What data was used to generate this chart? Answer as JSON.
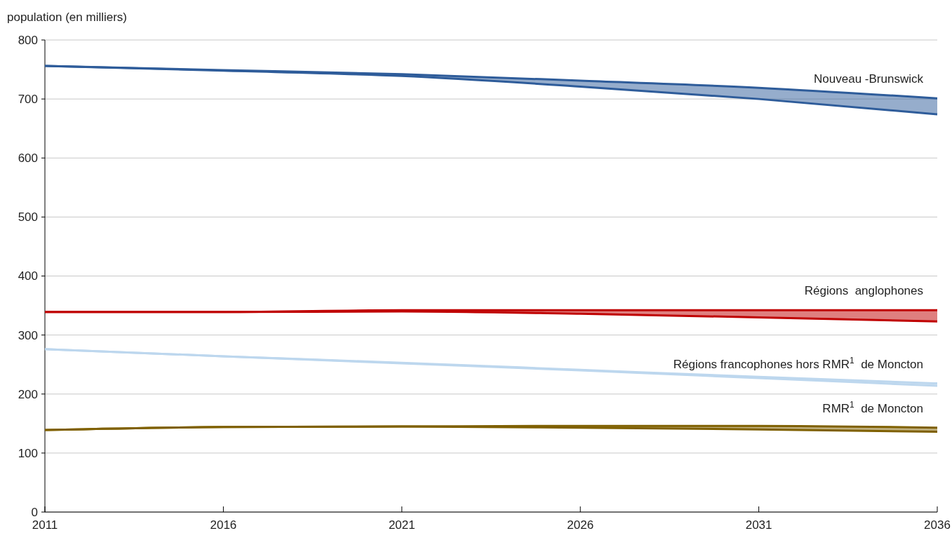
{
  "chart_data": {
    "type": "line",
    "ylabel": "population (en milliers)",
    "x": [
      2011,
      2016,
      2021,
      2026,
      2031,
      2036
    ],
    "xlim": [
      2011,
      2036
    ],
    "xticks": [
      2011,
      2016,
      2021,
      2026,
      2031,
      2036
    ],
    "ylim": [
      0,
      800
    ],
    "yticks": [
      0,
      100,
      200,
      300,
      400,
      500,
      600,
      700,
      800
    ],
    "grid": "y",
    "marker": "none",
    "line_style": "solid",
    "series": [
      {
        "name": "Nouveau -Brunswick",
        "color": "#2e5c9a",
        "values": [
          756,
          749,
          742,
          731,
          719,
          701
        ],
        "lower": [
          756,
          748,
          739,
          721,
          700,
          674
        ],
        "upper": [
          756,
          749,
          742,
          731,
          719,
          701
        ]
      },
      {
        "color": "#2e5c9a",
        "values": [
          756,
          748,
          739,
          721,
          700,
          674
        ]
      },
      {
        "name": "Régions  anglophones",
        "color": "#c00000",
        "values": [
          339,
          339,
          342,
          342,
          342,
          342
        ],
        "lower": [
          339,
          339,
          340,
          336,
          330,
          323
        ],
        "upper": [
          339,
          339,
          342,
          342,
          342,
          342
        ]
      },
      {
        "color": "#c00000",
        "values": [
          339,
          339,
          340,
          336,
          330,
          323
        ]
      },
      {
        "name": "Régions francophones hors RMR$^{1}$ de Moncton",
        "color": "#bdd7ee",
        "values": [
          276,
          264,
          253,
          241,
          229,
          218
        ],
        "lower": [
          276,
          264,
          252,
          240,
          227,
          214
        ],
        "upper": [
          276,
          264,
          253,
          241,
          229,
          218
        ]
      },
      {
        "color": "#bdd7ee",
        "values": [
          276,
          264,
          252,
          240,
          227,
          214
        ]
      },
      {
        "name": "RMR$^{1}$ de Moncton",
        "color": "#7f6000",
        "values": [
          139,
          144,
          145,
          146,
          146,
          143
        ],
        "lower": [
          139,
          144,
          145,
          143,
          140,
          136
        ],
        "upper": [
          139,
          144,
          145,
          146,
          146,
          143
        ]
      },
      {
        "color": "#7f6000",
        "values": [
          139,
          144,
          145,
          143,
          140,
          136
        ]
      }
    ]
  }
}
